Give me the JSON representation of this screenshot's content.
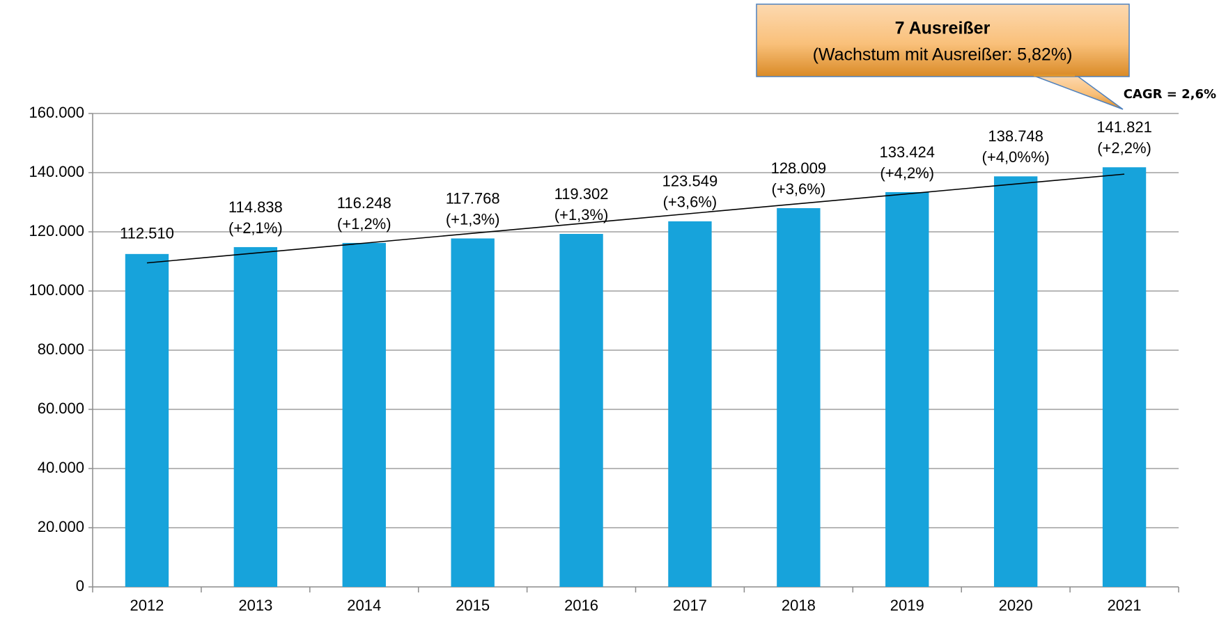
{
  "chart_data": {
    "type": "bar",
    "categories": [
      "2012",
      "2013",
      "2014",
      "2015",
      "2016",
      "2017",
      "2018",
      "2019",
      "2020",
      "2021"
    ],
    "values": [
      112510,
      114838,
      116248,
      117768,
      119302,
      123549,
      128009,
      133424,
      138748,
      141821
    ],
    "value_labels": [
      "112.510",
      "114.838",
      "116.248",
      "117.768",
      "119.302",
      "123.549",
      "128.009",
      "133.424",
      "138.748",
      "141.821"
    ],
    "growth_labels": [
      null,
      "(+2,1%)",
      "(+1,2%)",
      "(+1,3%)",
      "(+1,3%)",
      "(+3,6%)",
      "(+3,6%)",
      "(+4,2%)",
      "(+4,0%%)",
      "(+2,2%)"
    ],
    "color": "#17a3db",
    "ylim": [
      0,
      160000
    ],
    "yticks": [
      0,
      {
        "value": 20000,
        "label": "20.000"
      },
      {
        "value": 40000,
        "label": "40.000"
      },
      {
        "value": 60000,
        "label": "60.000"
      },
      {
        "value": 80000,
        "label": "80.000"
      },
      {
        "value": 100000,
        "label": "100.000"
      },
      {
        "value": 120000,
        "label": "120.000"
      },
      {
        "value": 140000,
        "label": "140.000"
      },
      {
        "value": 160000,
        "label": "160.000"
      }
    ],
    "grid": true,
    "trend_line": {
      "start": 109500,
      "end": 139500
    },
    "callout": {
      "title": "7 Ausreißer",
      "text": "(Wachstum mit Ausreißer: 5,82%)"
    },
    "annotation": "CAGR = 2,6%"
  }
}
